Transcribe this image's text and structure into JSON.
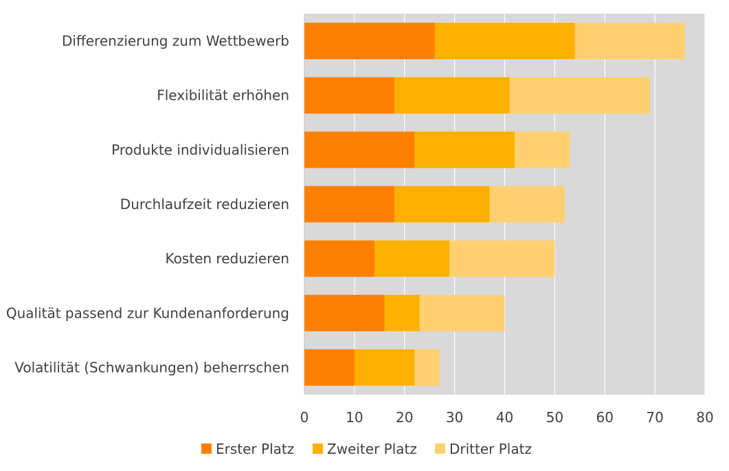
{
  "chart_data": {
    "type": "bar",
    "orientation": "horizontal",
    "stacked": true,
    "categories": [
      "Differenzierung zum Wettbewerb",
      "Flexibilität erhöhen",
      "Produkte individualisieren",
      "Durchlaufzeit reduzieren",
      "Kosten reduzieren",
      "Qualität passend zur Kundenanforderung",
      "Volatilität (Schwankungen) beherrschen"
    ],
    "series": [
      {
        "name": "Erster Platz",
        "color": "#FF8000",
        "values": [
          26,
          18,
          22,
          18,
          14,
          16,
          10
        ]
      },
      {
        "name": "Zweiter Platz",
        "color": "#FFB000",
        "values": [
          28,
          23,
          20,
          19,
          15,
          7,
          12
        ]
      },
      {
        "name": "Dritter Platz",
        "color": "#FFD070",
        "values": [
          22,
          28,
          11,
          15,
          21,
          17,
          5
        ]
      }
    ],
    "xlim": [
      0,
      80
    ],
    "xticks": [
      0,
      10,
      20,
      30,
      40,
      50,
      60,
      70,
      80
    ],
    "title": "",
    "xlabel": "",
    "ylabel": "",
    "grid": true,
    "plot_background": "#D9D9D9",
    "legend_position": "bottom"
  }
}
